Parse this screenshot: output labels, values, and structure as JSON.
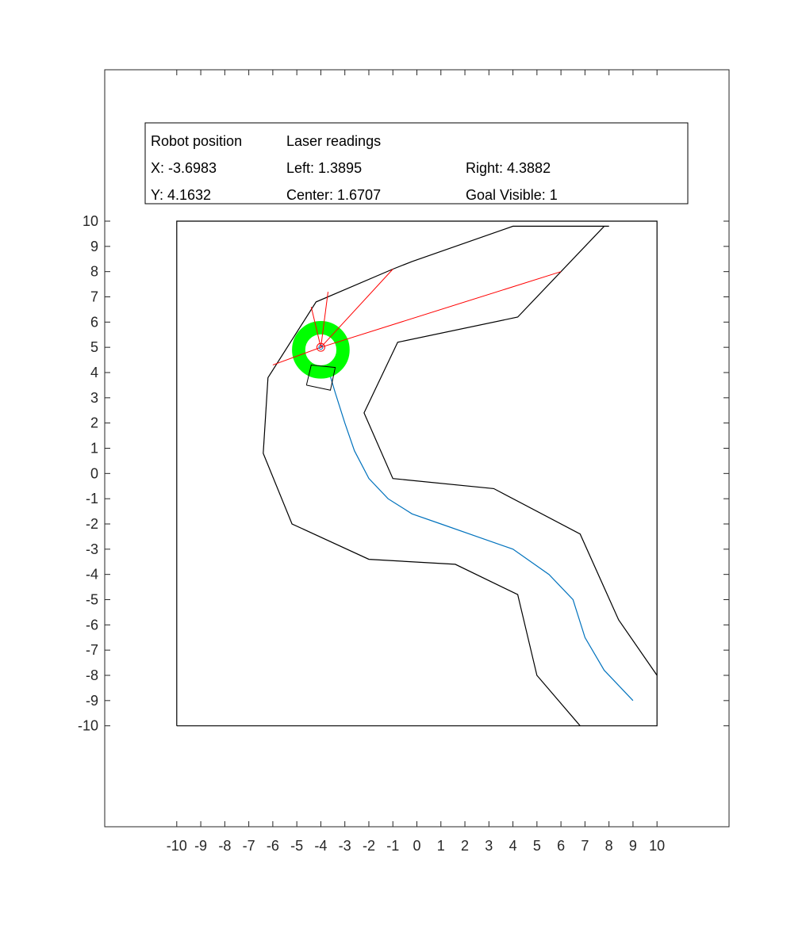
{
  "info_panel": {
    "robot_position_label": "Robot position",
    "laser_readings_label": "Laser readings",
    "x_text": "X: -3.6983",
    "y_text": "Y: 4.1632",
    "left_text": "Left: 1.3895",
    "center_text": "Center: 1.6707",
    "right_text": "Right: 4.3882",
    "goal_visible_text": "Goal Visible: 1"
  },
  "chart_data": {
    "type": "line",
    "xlim": [
      -13,
      13
    ],
    "ylim": [
      -14,
      16
    ],
    "xticks": [
      -10,
      -9,
      -8,
      -7,
      -6,
      -5,
      -4,
      -3,
      -2,
      -1,
      0,
      1,
      2,
      3,
      4,
      5,
      6,
      7,
      8,
      9,
      10
    ],
    "yticks": [
      -10,
      -9,
      -8,
      -7,
      -6,
      -5,
      -4,
      -3,
      -2,
      -1,
      0,
      1,
      2,
      3,
      4,
      5,
      6,
      7,
      8,
      9,
      10
    ],
    "grid": false,
    "colors": {
      "walls": "#000000",
      "trajectory": "#0072BD",
      "laser": "#FF0000",
      "goal_ring": "#00FF00"
    },
    "boundary": [
      [
        -10,
        -10
      ],
      [
        10,
        -10
      ],
      [
        10,
        10
      ],
      [
        -10,
        10
      ],
      [
        -10,
        -10
      ]
    ],
    "corridor_outer": [
      [
        6.8,
        -10
      ],
      [
        5,
        -8
      ],
      [
        4.2,
        -4.8
      ],
      [
        1.6,
        -3.6
      ],
      [
        -2,
        -3.4
      ],
      [
        -5.2,
        -2
      ],
      [
        -6.4,
        0.8
      ],
      [
        -6.2,
        3.8
      ],
      [
        -4.2,
        6.8
      ],
      [
        -1,
        8.1
      ],
      [
        -0.2,
        8.4
      ],
      [
        4,
        9.8
      ],
      [
        8,
        9.8
      ]
    ],
    "corridor_inner": [
      [
        10,
        -8
      ],
      [
        8.4,
        -5.8
      ],
      [
        6.8,
        -2.4
      ],
      [
        3.2,
        -0.6
      ],
      [
        -1,
        -0.2
      ],
      [
        -2.2,
        2.4
      ],
      [
        -0.8,
        5.2
      ],
      [
        4.2,
        6.2
      ],
      [
        7.8,
        9.8
      ]
    ],
    "trajectory": [
      [
        9,
        -9
      ],
      [
        7.8,
        -7.8
      ],
      [
        7,
        -6.5
      ],
      [
        6.5,
        -5
      ],
      [
        5.5,
        -4
      ],
      [
        4,
        -3
      ],
      [
        2.5,
        -2.5
      ],
      [
        1,
        -2
      ],
      [
        -0.2,
        -1.6
      ],
      [
        -1.2,
        -1
      ],
      [
        -2,
        -0.2
      ],
      [
        -2.6,
        0.9
      ],
      [
        -3,
        2
      ],
      [
        -3.4,
        3.2
      ],
      [
        -3.7,
        4.16
      ]
    ],
    "robot": {
      "x": -3.6983,
      "y": 4.1632,
      "heading_deg": 105,
      "body": [
        [
          -4.6,
          3.5
        ],
        [
          -3.6,
          3.3
        ],
        [
          -3.4,
          4.2
        ],
        [
          -4.4,
          4.3
        ],
        [
          -4.6,
          3.5
        ]
      ]
    },
    "goal": {
      "x": -4,
      "y": 4.9,
      "r_inner": 0.9,
      "r_outer": 1.2
    },
    "laser_origin": [
      -4,
      5
    ],
    "laser_endpoints": [
      [
        -6,
        4.3
      ],
      [
        -4.4,
        6.6
      ],
      [
        -3.7,
        7.2
      ],
      [
        -1,
        8.1
      ],
      [
        6,
        8
      ]
    ]
  }
}
